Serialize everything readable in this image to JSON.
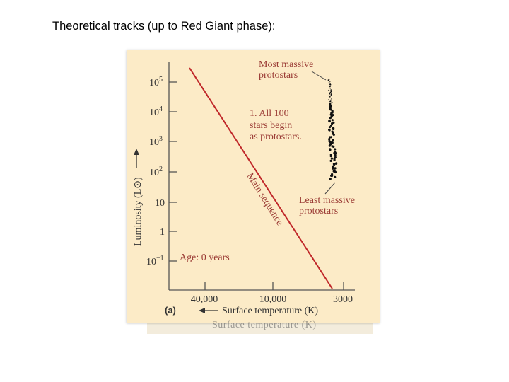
{
  "slide": {
    "title": "Theoretical tracks (up to Red Giant phase):"
  },
  "figure": {
    "annotations": {
      "most_massive": [
        "Most massive",
        "protostars"
      ],
      "stars_begin": [
        "1. All 100",
        "stars begin",
        "as protostars."
      ],
      "least_massive": [
        "Least massive",
        "protostars"
      ],
      "age": "Age: 0 years",
      "main_sequence": "Main sequence",
      "panel_label": "(a)"
    },
    "colors": {
      "main_sequence": "#c0282a",
      "label_red": "#9a3a34",
      "panel": "#fcebc7",
      "axis": "#555555"
    }
  },
  "chart_data": {
    "type": "scatter",
    "title": "",
    "xlabel": "Surface temperature (K)",
    "ylabel": "Luminosity (L⊙)",
    "x_ticks": [
      "40,000",
      "10,000",
      "3000"
    ],
    "y_ticks": [
      "10⁻¹",
      "1",
      "10",
      "10²",
      "10³",
      "10⁴",
      "10⁵"
    ],
    "x_direction": "decreasing temperature to the right",
    "y_scale": "log",
    "ylim": [
      0.1,
      100000
    ],
    "series": [
      {
        "name": "Main sequence",
        "kind": "line"
      },
      {
        "name": "Protostars",
        "kind": "points"
      }
    ]
  }
}
